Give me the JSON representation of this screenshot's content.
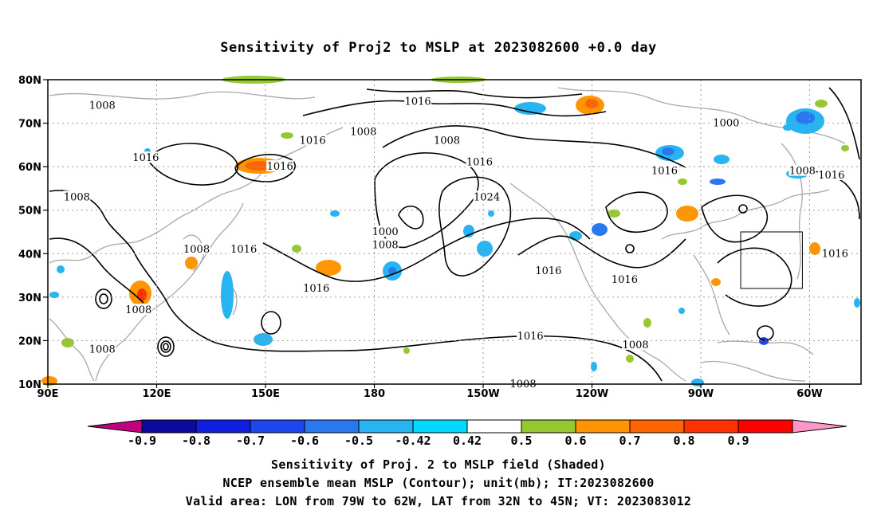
{
  "title": "Sensitivity of Proj2 to MSLP at 2023082600 +0.0 day",
  "axes": {
    "lat_labels": [
      "80N",
      "70N",
      "60N",
      "50N",
      "40N",
      "30N",
      "20N",
      "10N"
    ],
    "lon_labels": [
      "90E",
      "120E",
      "150E",
      "180",
      "150W",
      "120W",
      "90W",
      "60W"
    ]
  },
  "colorbar": {
    "labels": [
      "-0.9",
      "-0.8",
      "-0.7",
      "-0.6",
      "-0.5",
      "-0.42",
      "0.42",
      "0.5",
      "0.6",
      "0.7",
      "0.8",
      "0.9"
    ],
    "colors": [
      "#c0007f",
      "#0a0a9e",
      "#0f1ee0",
      "#1e46f0",
      "#2a78f0",
      "#28b4f0",
      "#00d8ff",
      "#ffffff",
      "#96c832",
      "#ff9600",
      "#ff6400",
      "#ff3200",
      "#ff0000",
      "#ff96c8"
    ]
  },
  "contour_labels": [
    {
      "text": "1008",
      "lon": 105,
      "lat": 74
    },
    {
      "text": "1016",
      "lon": 192,
      "lat": 75
    },
    {
      "text": "1000",
      "lon": 277,
      "lat": 70
    },
    {
      "text": "1008",
      "lon": 177,
      "lat": 68
    },
    {
      "text": "1016",
      "lon": 163,
      "lat": 66
    },
    {
      "text": "1008",
      "lon": 200,
      "lat": 66
    },
    {
      "text": "1016",
      "lon": 117,
      "lat": 62
    },
    {
      "text": "1016",
      "lon": 154,
      "lat": 60
    },
    {
      "text": "1016",
      "lon": 209,
      "lat": 61
    },
    {
      "text": "1016",
      "lon": 260,
      "lat": 59
    },
    {
      "text": "1008",
      "lon": 298,
      "lat": 59
    },
    {
      "text": "1016",
      "lon": 306,
      "lat": 58
    },
    {
      "text": "1008",
      "lon": 98,
      "lat": 53
    },
    {
      "text": "1024",
      "lon": 211,
      "lat": 53
    },
    {
      "text": "1000",
      "lon": 183,
      "lat": 45
    },
    {
      "text": "1008",
      "lon": 183,
      "lat": 42
    },
    {
      "text": "1008",
      "lon": 131,
      "lat": 41
    },
    {
      "text": "1016",
      "lon": 144,
      "lat": 41
    },
    {
      "text": "1016",
      "lon": 228,
      "lat": 36
    },
    {
      "text": "1016",
      "lon": 249,
      "lat": 34
    },
    {
      "text": "1016",
      "lon": 307,
      "lat": 40
    },
    {
      "text": "1016",
      "lon": 164,
      "lat": 32
    },
    {
      "text": "1008",
      "lon": 115,
      "lat": 27
    },
    {
      "text": "1016",
      "lon": 223,
      "lat": 21
    },
    {
      "text": "1008",
      "lon": 105,
      "lat": 18
    },
    {
      "text": "1008",
      "lon": 252,
      "lat": 19
    },
    {
      "text": "1008",
      "lon": 221,
      "lat": 10
    }
  ],
  "valid_area": {
    "lon_min": -79,
    "lon_max": -62,
    "lat_min": 32,
    "lat_max": 45
  },
  "captions": [
    "Sensitivity of Proj. 2 to MSLP field (Shaded)",
    "NCEP ensemble mean MSLP (Contour); unit(mb); IT:2023082600",
    "Valid area: LON from 79W to 62W, LAT from 32N to 45N; VT: 2023083012"
  ]
}
